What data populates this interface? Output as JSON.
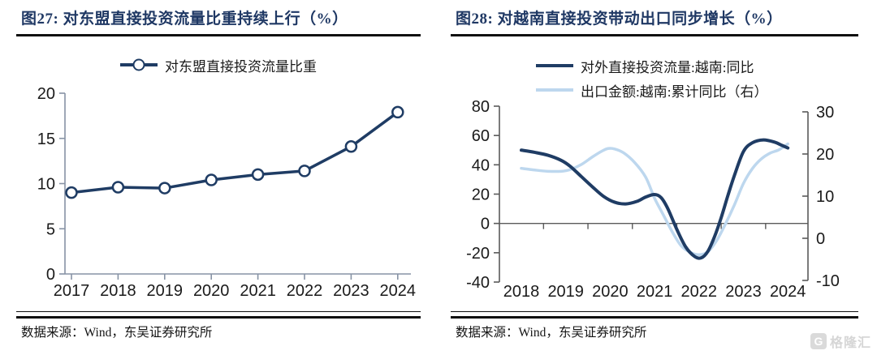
{
  "colors": {
    "navy": "#1f3c64",
    "light_blue": "#bdd7ee",
    "title": "#1f3864",
    "axis_gray_1": "#8793a5",
    "axis_gray_2": "#5a5a5a",
    "rule": "#101010",
    "watermark_gray": "#d8d8d8"
  },
  "watermark": {
    "icon": "G",
    "text": "格隆汇"
  },
  "panels": [
    {
      "title": "图27:  对东盟直接投资流量比重持续上行（%）",
      "legend": [
        {
          "label": "对东盟直接投资流量比重",
          "marker": "line-circle"
        }
      ],
      "source": "数据来源：Wind，东吴证券研究所"
    },
    {
      "title": "图28:  对越南直接投资带动出口同步增长（%）",
      "legend": [
        {
          "label": "对外直接投资流量:越南:同比",
          "marker": "line"
        },
        {
          "label": "出口金额:越南:累计同比（右）",
          "marker": "line"
        }
      ],
      "source": "数据来源：Wind，东吴证券研究所"
    }
  ],
  "chart_data": [
    {
      "type": "line",
      "title": "对东盟直接投资流量比重持续上行（%）",
      "categories": [
        2017,
        2018,
        2019,
        2020,
        2021,
        2022,
        2023,
        2024
      ],
      "series": [
        {
          "name": "对东盟直接投资流量比重",
          "values": [
            9.0,
            9.6,
            9.5,
            10.4,
            11.0,
            11.4,
            14.1,
            17.9
          ],
          "color": "#1f3c64",
          "marker": "open-circle"
        }
      ],
      "ylim": [
        0,
        20
      ],
      "yticks": [
        0,
        5,
        10,
        15,
        20
      ],
      "grid": false,
      "legend_position": "top"
    },
    {
      "type": "line",
      "title": "对越南直接投资带动出口同步增长（%）",
      "dual_axis": true,
      "x_tick_labels": [
        2018,
        2019,
        2020,
        2021,
        2022,
        2023,
        2024
      ],
      "ylim_left": [
        -40,
        80
      ],
      "yticks_left": [
        -40,
        -20,
        0,
        20,
        40,
        60,
        80
      ],
      "ylim_right": [
        -10,
        30
      ],
      "yticks_right": [
        -10,
        0,
        10,
        20,
        30
      ],
      "grid": false,
      "legend_position": "top",
      "series": [
        {
          "name": "对外直接投资流量:越南:同比",
          "axis": "left",
          "color": "#1f3c64",
          "points": [
            [
              2018,
              50
            ],
            [
              2018.3,
              48.5
            ],
            [
              2018.6,
              46.5
            ],
            [
              2018.9,
              43
            ],
            [
              2019.1,
              39
            ],
            [
              2019.35,
              32
            ],
            [
              2019.6,
              25
            ],
            [
              2019.85,
              18.5
            ],
            [
              2020.1,
              14.5
            ],
            [
              2020.35,
              13.3
            ],
            [
              2020.6,
              15
            ],
            [
              2020.8,
              18
            ],
            [
              2021.0,
              19.7
            ],
            [
              2021.15,
              17.5
            ],
            [
              2021.3,
              10
            ],
            [
              2021.5,
              -4
            ],
            [
              2021.7,
              -16
            ],
            [
              2021.9,
              -22.5
            ],
            [
              2022.05,
              -23.5
            ],
            [
              2022.2,
              -19
            ],
            [
              2022.35,
              -9
            ],
            [
              2022.5,
              4
            ],
            [
              2022.65,
              19
            ],
            [
              2022.8,
              33
            ],
            [
              2023.0,
              49
            ],
            [
              2023.2,
              55
            ],
            [
              2023.45,
              57
            ],
            [
              2023.7,
              55.5
            ],
            [
              2023.85,
              53.5
            ],
            [
              2024,
              51.5
            ]
          ]
        },
        {
          "name": "出口金额:越南:累计同比（右）",
          "axis": "right",
          "color": "#bdd7ee",
          "points": [
            [
              2018,
              16.6
            ],
            [
              2018.3,
              16.2
            ],
            [
              2018.6,
              15.9
            ],
            [
              2018.9,
              15.9
            ],
            [
              2019.1,
              16.3
            ],
            [
              2019.35,
              17.5
            ],
            [
              2019.6,
              19.3
            ],
            [
              2019.8,
              20.6
            ],
            [
              2019.95,
              21.3
            ],
            [
              2020.1,
              21.2
            ],
            [
              2020.3,
              20.3
            ],
            [
              2020.55,
              18
            ],
            [
              2020.8,
              14.5
            ],
            [
              2021.0,
              9.5
            ],
            [
              2021.2,
              5.5
            ],
            [
              2021.4,
              1.5
            ],
            [
              2021.6,
              -1.8
            ],
            [
              2021.8,
              -3.3
            ],
            [
              2022.0,
              -3.9
            ],
            [
              2022.2,
              -3.2
            ],
            [
              2022.4,
              -0.5
            ],
            [
              2022.6,
              3.5
            ],
            [
              2022.8,
              8
            ],
            [
              2023.0,
              13
            ],
            [
              2023.2,
              16.5
            ],
            [
              2023.4,
              18.8
            ],
            [
              2023.6,
              20.2
            ],
            [
              2023.8,
              21
            ],
            [
              2024,
              22.4
            ]
          ]
        }
      ]
    }
  ]
}
